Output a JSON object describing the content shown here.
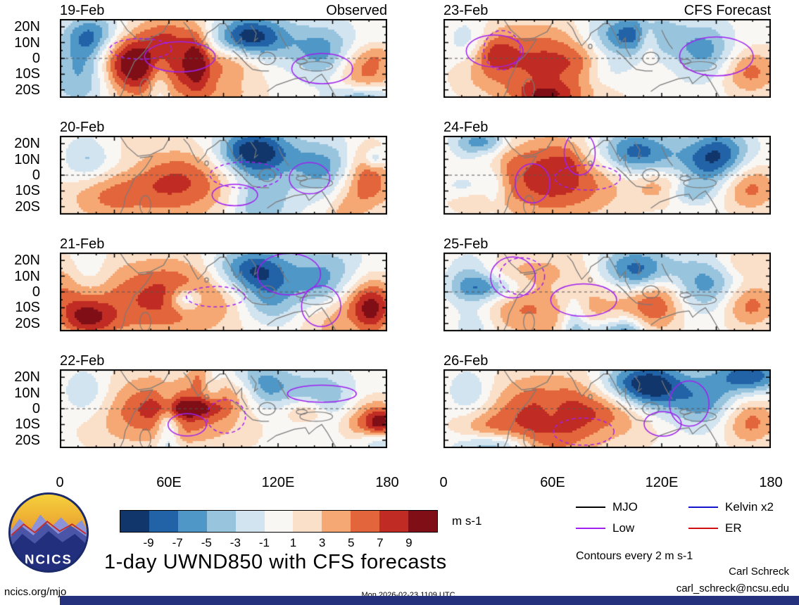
{
  "figure": {
    "title": "1-day UWND850 with CFS forecasts",
    "site": "ncics.org/mjo",
    "timestamp": "Mon 2026-02-23 1109 UTC",
    "credit_name": "Carl Schreck",
    "credit_email": "carl_schreck@ncsu.edu",
    "contours_note": "Contours every 2 m s-1",
    "units_label": "m s-1",
    "logo_text": "NCICS",
    "bar_color": "#26317e"
  },
  "columns": [
    {
      "heading": "Observed",
      "dates": [
        "19-Feb",
        "20-Feb",
        "21-Feb",
        "22-Feb"
      ]
    },
    {
      "heading": "CFS Forecast",
      "dates": [
        "23-Feb",
        "24-Feb",
        "25-Feb",
        "26-Feb"
      ]
    }
  ],
  "axes": {
    "y_ticks": [
      "20N",
      "10N",
      "0",
      "10S",
      "20S"
    ],
    "x_ticks": [
      "0",
      "60E",
      "120E",
      "180"
    ]
  },
  "colorbar": {
    "tick_labels": [
      "-9",
      "-7",
      "-5",
      "-3",
      "-1",
      "1",
      "3",
      "5",
      "7",
      "9"
    ]
  },
  "chart_data": {
    "type": "heatmap",
    "variable": "UWND850 (850-hPa zonal wind anomalies), observed and CFS forecast",
    "units": "m s-1",
    "x_axis": {
      "label": "longitude",
      "range_deg": [
        0,
        180
      ],
      "tick_values": [
        0,
        60,
        120,
        180
      ],
      "tick_labels": [
        "0",
        "60E",
        "120E",
        "180"
      ]
    },
    "y_axis": {
      "label": "latitude",
      "range_deg": [
        -25,
        25
      ],
      "tick_values": [
        20,
        10,
        0,
        -10,
        -20
      ],
      "tick_labels": [
        "20N",
        "10N",
        "0",
        "10S",
        "20S"
      ]
    },
    "shading_levels": [
      -9,
      -7,
      -5,
      -3,
      -1,
      1,
      3,
      5,
      7,
      9
    ],
    "shading_colors": [
      "#10366b",
      "#2263a8",
      "#4f97c7",
      "#99c4de",
      "#d2e4f0",
      "#f9f7f4",
      "#fadfc9",
      "#f5a873",
      "#e2653c",
      "#c02c23",
      "#7f0e17"
    ],
    "contour_interval": 2,
    "panels": [
      {
        "date": "19-Feb",
        "column": "Observed"
      },
      {
        "date": "20-Feb",
        "column": "Observed"
      },
      {
        "date": "21-Feb",
        "column": "Observed"
      },
      {
        "date": "22-Feb",
        "column": "Observed"
      },
      {
        "date": "23-Feb",
        "column": "CFS Forecast"
      },
      {
        "date": "24-Feb",
        "column": "CFS Forecast"
      },
      {
        "date": "25-Feb",
        "column": "CFS Forecast"
      },
      {
        "date": "26-Feb",
        "column": "CFS Forecast"
      }
    ],
    "legend": [
      {
        "label": "MJO",
        "color": "#000000"
      },
      {
        "label": "Low",
        "color": "#a020f0"
      },
      {
        "label": "Kelvin x2",
        "color": "#1414cc"
      },
      {
        "label": "ER",
        "color": "#d01010"
      }
    ]
  }
}
